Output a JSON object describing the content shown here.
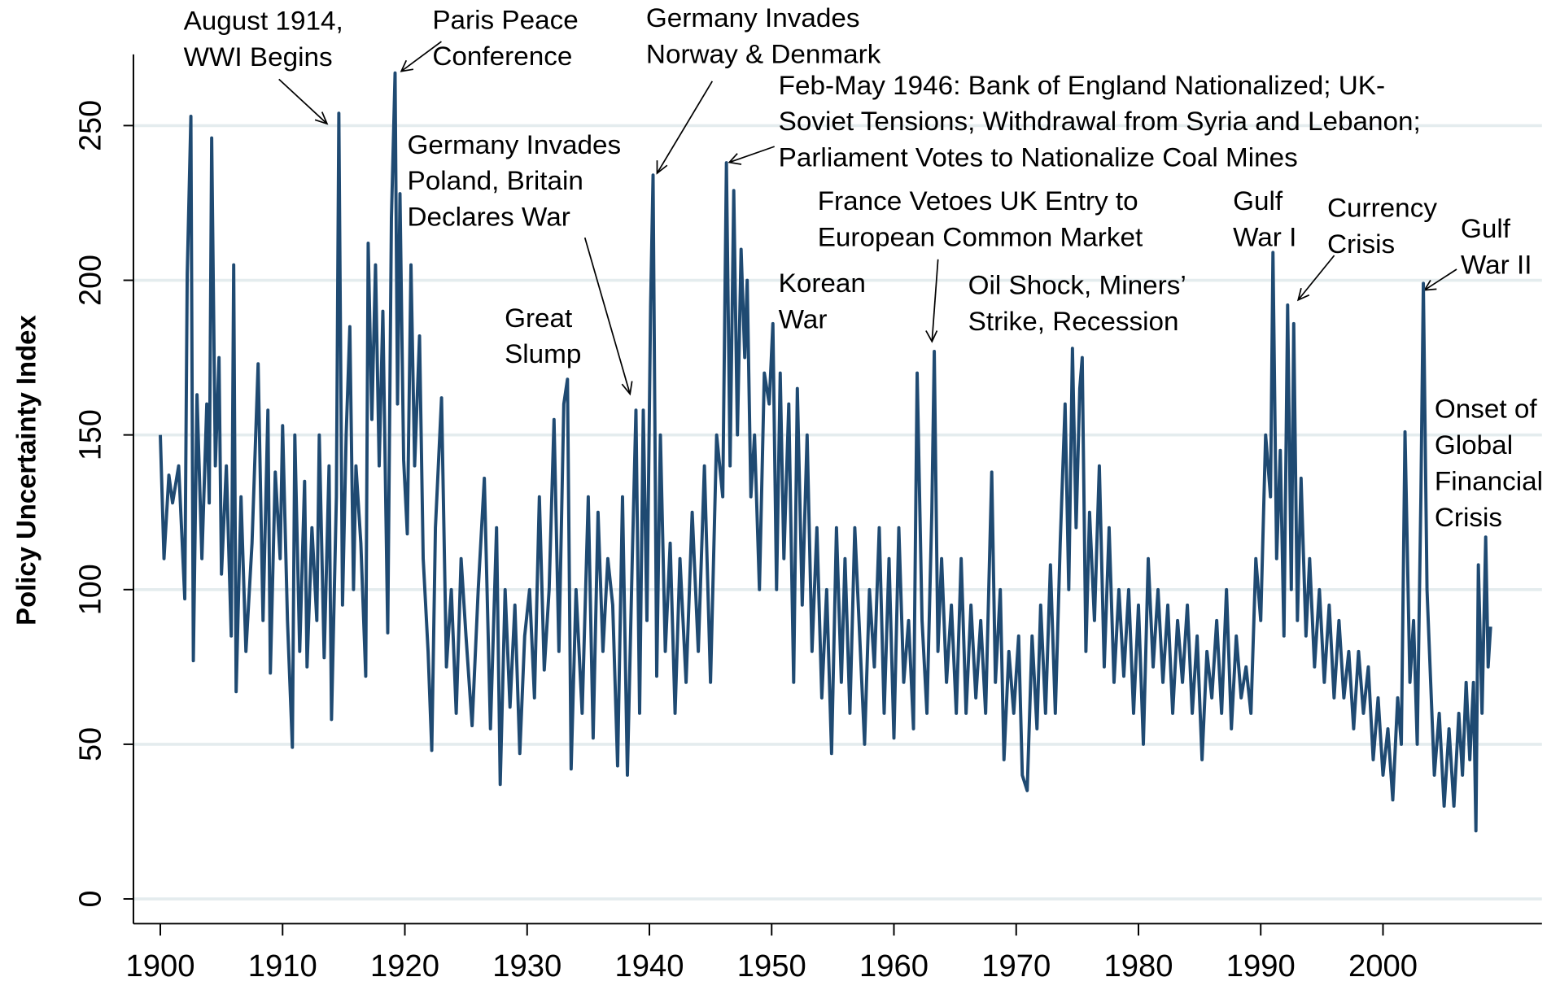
{
  "chart_data": {
    "type": "line",
    "ylabel": "Policy Uncertainty Index",
    "color": "#1f4a72",
    "xlim": [
      1897.8,
      2013
    ],
    "xticks": [
      1900,
      1910,
      1920,
      1930,
      1940,
      1950,
      1960,
      1970,
      1980,
      1990,
      2000
    ],
    "ylim": [
      -8,
      273
    ],
    "yticks": [
      0,
      50,
      100,
      150,
      200,
      250
    ],
    "grid": true,
    "annotations": [
      [
        "August 1914,",
        "WWI Begins"
      ],
      [
        "Paris Peace",
        "Conference"
      ],
      [
        "Germany Invades",
        "Norway & Denmark"
      ],
      [
        "Feb-May 1946: Bank of England Nationalized; UK-",
        "Soviet Tensions; Withdrawal from Syria and Lebanon;",
        "Parliament Votes to Nationalize Coal Mines"
      ],
      [
        "Germany Invades",
        "Poland, Britain",
        "Declares War"
      ],
      [
        "Great",
        "Slump"
      ],
      [
        "Korean",
        "War"
      ],
      [
        "France Vetoes UK Entry to",
        "European Common Market"
      ],
      [
        "Oil Shock, Miners’",
        "Strike, Recession"
      ],
      [
        "Gulf",
        "War I"
      ],
      [
        "Currency",
        "Crisis"
      ],
      [
        "Gulf",
        "War II"
      ],
      [
        "Onset of",
        "Global",
        "Financial",
        "Crisis"
      ]
    ],
    "x": [
      1900,
      1900.3,
      1900.7,
      1901,
      1901.5,
      1902,
      1902.2,
      1902.5,
      1902.7,
      1903,
      1903.4,
      1903.8,
      1904,
      1904.2,
      1904.5,
      1904.8,
      1905,
      1905.4,
      1905.8,
      1906,
      1906.2,
      1906.6,
      1907,
      1907.5,
      1908,
      1908.4,
      1908.8,
      1909,
      1909.4,
      1909.8,
      1910,
      1910.4,
      1910.8,
      1911,
      1911.4,
      1911.8,
      1912,
      1912.4,
      1912.8,
      1913,
      1913.4,
      1913.8,
      1914,
      1914.4,
      1914.6,
      1914.9,
      1915.2,
      1915.5,
      1915.8,
      1916,
      1916.4,
      1916.8,
      1917,
      1917.3,
      1917.6,
      1917.9,
      1918.2,
      1918.6,
      1918.9,
      1919.2,
      1919.4,
      1919.6,
      1919.9,
      1920.2,
      1920.5,
      1920.8,
      1921.2,
      1921.5,
      1921.9,
      1922.2,
      1922.5,
      1923,
      1923.4,
      1923.8,
      1924.2,
      1924.6,
      1925,
      1925.5,
      1926,
      1926.5,
      1927,
      1927.5,
      1927.8,
      1928.2,
      1928.6,
      1929,
      1929.4,
      1929.8,
      1930.2,
      1930.6,
      1931,
      1931.4,
      1931.8,
      1932.2,
      1932.6,
      1933,
      1933.3,
      1933.6,
      1934,
      1934.5,
      1935,
      1935.4,
      1935.8,
      1936.2,
      1936.6,
      1937,
      1937.4,
      1937.8,
      1938.2,
      1938.6,
      1938.9,
      1939.2,
      1939.5,
      1939.8,
      1940.1,
      1940.3,
      1940.6,
      1940.9,
      1941.3,
      1941.7,
      1942.1,
      1942.5,
      1943,
      1943.5,
      1944,
      1944.5,
      1945,
      1945.5,
      1946,
      1946.3,
      1946.6,
      1946.9,
      1947.2,
      1947.5,
      1947.8,
      1948,
      1948.3,
      1948.6,
      1949,
      1949.4,
      1949.8,
      1950.1,
      1950.4,
      1950.7,
      1951,
      1951.4,
      1951.8,
      1952.1,
      1952.5,
      1952.9,
      1953.3,
      1953.7,
      1954.1,
      1954.5,
      1954.9,
      1955.3,
      1955.7,
      1956,
      1956.4,
      1956.8,
      1957.2,
      1957.6,
      1958,
      1958.4,
      1958.8,
      1959.2,
      1959.6,
      1960,
      1960.4,
      1960.8,
      1961.2,
      1961.6,
      1961.9,
      1962.3,
      1962.7,
      1963.1,
      1963.3,
      1963.6,
      1963.9,
      1964.3,
      1964.7,
      1965.1,
      1965.5,
      1965.9,
      1966.3,
      1966.7,
      1967.1,
      1967.5,
      1968,
      1968.3,
      1968.7,
      1969,
      1969.4,
      1969.8,
      1970.2,
      1970.5,
      1970.9,
      1971.3,
      1971.7,
      1972,
      1972.4,
      1972.8,
      1973.2,
      1973.6,
      1974,
      1974.3,
      1974.6,
      1974.9,
      1975.2,
      1975.4,
      1975.7,
      1976,
      1976.4,
      1976.8,
      1977.2,
      1977.6,
      1978,
      1978.4,
      1978.8,
      1979.2,
      1979.6,
      1980,
      1980.4,
      1980.8,
      1981.2,
      1981.6,
      1982,
      1982.4,
      1982.8,
      1983.2,
      1983.6,
      1984,
      1984.4,
      1984.8,
      1985.2,
      1985.6,
      1986,
      1986.4,
      1986.8,
      1987.2,
      1987.6,
      1988,
      1988.4,
      1988.8,
      1989.2,
      1989.6,
      1990,
      1990.4,
      1990.8,
      1991,
      1991.3,
      1991.6,
      1991.9,
      1992.2,
      1992.5,
      1992.7,
      1993,
      1993.3,
      1993.7,
      1994,
      1994.4,
      1994.8,
      1995.2,
      1995.6,
      1996,
      1996.4,
      1996.8,
      1997.2,
      1997.6,
      1998,
      1998.4,
      1998.8,
      1999.2,
      1999.6,
      2000,
      2000.4,
      2000.8,
      2001.2,
      2001.5,
      2001.8,
      2002.2,
      2002.5,
      2002.8,
      2003.1,
      2003.3,
      2003.6,
      2003.9,
      2004.2,
      2004.6,
      2005,
      2005.4,
      2005.8,
      2006.2,
      2006.5,
      2006.8,
      2007.1,
      2007.4,
      2007.6,
      2007.8,
      2008.1,
      2008.4,
      2008.6,
      2008.8
    ],
    "values": [
      150,
      110,
      137,
      128,
      140,
      97,
      202,
      253,
      77,
      163,
      110,
      160,
      128,
      246,
      140,
      175,
      105,
      140,
      85,
      205,
      67,
      130,
      80,
      115,
      173,
      90,
      158,
      73,
      138,
      110,
      153,
      90,
      49,
      150,
      80,
      135,
      75,
      120,
      90,
      150,
      78,
      140,
      58,
      130,
      254,
      95,
      150,
      185,
      100,
      140,
      115,
      72,
      212,
      155,
      205,
      140,
      190,
      86,
      220,
      267,
      160,
      228,
      142,
      118,
      205,
      140,
      182,
      110,
      80,
      48,
      120,
      162,
      75,
      100,
      60,
      110,
      85,
      56,
      100,
      136,
      55,
      120,
      37,
      100,
      62,
      95,
      47,
      85,
      100,
      65,
      130,
      74,
      100,
      155,
      80,
      160,
      168,
      42,
      100,
      60,
      130,
      52,
      125,
      80,
      110,
      95,
      43,
      130,
      40,
      110,
      158,
      60,
      158,
      90,
      192,
      234,
      72,
      150,
      80,
      115,
      60,
      110,
      70,
      125,
      80,
      140,
      70,
      150,
      130,
      238,
      140,
      229,
      150,
      210,
      175,
      200,
      130,
      150,
      100,
      170,
      160,
      186,
      100,
      170,
      110,
      160,
      70,
      165,
      95,
      150,
      80,
      120,
      65,
      100,
      47,
      120,
      70,
      110,
      60,
      120,
      85,
      50,
      100,
      75,
      120,
      60,
      110,
      52,
      120,
      70,
      90,
      55,
      170,
      90,
      60,
      125,
      177,
      80,
      110,
      70,
      95,
      60,
      110,
      60,
      95,
      65,
      90,
      60,
      138,
      70,
      100,
      45,
      80,
      60,
      85,
      40,
      35,
      85,
      55,
      95,
      60,
      108,
      60,
      115,
      160,
      100,
      178,
      120,
      165,
      175,
      80,
      125,
      90,
      140,
      75,
      120,
      70,
      100,
      72,
      100,
      60,
      95,
      50,
      110,
      75,
      100,
      70,
      95,
      60,
      90,
      70,
      95,
      60,
      85,
      45,
      80,
      65,
      90,
      60,
      100,
      55,
      85,
      65,
      75,
      60,
      110,
      90,
      150,
      130,
      209,
      110,
      145,
      85,
      192,
      100,
      186,
      90,
      136,
      85,
      110,
      75,
      100,
      70,
      95,
      65,
      90,
      65,
      80,
      55,
      80,
      60,
      75,
      45,
      65,
      40,
      55,
      32,
      65,
      50,
      151,
      70,
      90,
      50,
      130,
      199,
      100,
      70,
      40,
      60,
      30,
      55,
      30,
      60,
      40,
      70,
      45,
      70,
      22,
      108,
      60,
      117,
      75,
      88
    ]
  }
}
